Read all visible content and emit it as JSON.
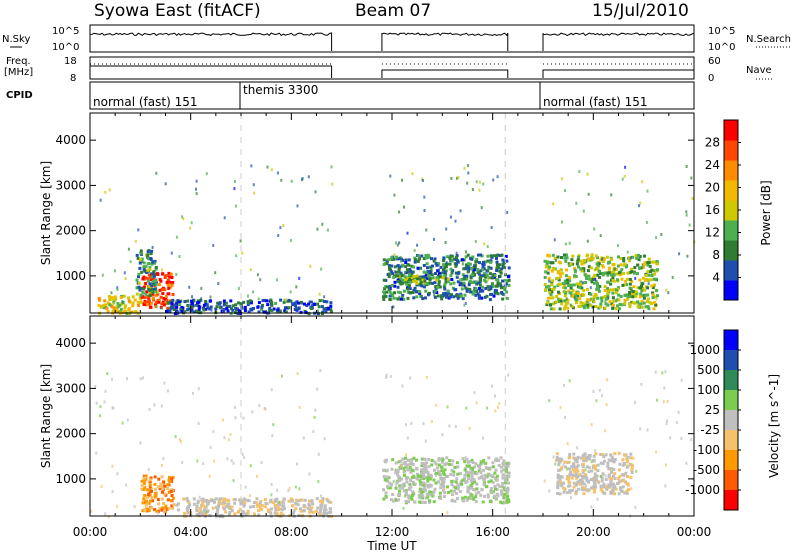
{
  "header": {
    "station": "Syowa East (fitACF)",
    "beam": "Beam 07",
    "date": "15/Jul/2010"
  },
  "panels": {
    "noise": {
      "left_label": "N.Sky",
      "right_label": "N.Search",
      "left_ticks": [
        "10^5",
        "10^0"
      ],
      "right_ticks": [
        "10^5",
        "10^0"
      ]
    },
    "freq": {
      "left_label_1": "Freq.",
      "left_label_2": "[MHz]",
      "right_label": "Nave",
      "left_ticks": [
        "18",
        "8"
      ],
      "right_ticks": [
        "60",
        "0"
      ]
    },
    "cpid": {
      "label": "CPID",
      "modes": [
        "normal (fast) 151",
        "themis 3300",
        "normal (fast) 151"
      ]
    }
  },
  "colors": {
    "power": [
      "#0000ff",
      "#1e4fb0",
      "#2e7d32",
      "#4caf50",
      "#cfc800",
      "#f5b800",
      "#ff8c00",
      "#ff4500",
      "#ff0000"
    ],
    "velocity": [
      "#ff0000",
      "#ff5a00",
      "#ff9900",
      "#f5c26b",
      "#bfbfbf",
      "#7ccc4f",
      "#2e8b57",
      "#1e4fb0",
      "#0000ff"
    ]
  },
  "chart_data": [
    {
      "type": "heatmap",
      "title": "Power",
      "xlabel": "Time UT",
      "ylabel": "Slant Range [km]",
      "x_ticks": [
        "00:00",
        "04:00",
        "08:00",
        "12:00",
        "16:00",
        "20:00",
        "00:00"
      ],
      "x_range_hours": [
        0,
        24
      ],
      "y_ticks": [
        1000,
        2000,
        3000,
        4000
      ],
      "ylim": [
        180,
        4600
      ],
      "colorbar_label": "Power [dB]",
      "colorbar_ticks": [
        4,
        8,
        12,
        16,
        20,
        24,
        28
      ],
      "colorbar_range": [
        0,
        32
      ],
      "data_gaps_hours": [
        [
          9.6,
          11.6
        ],
        [
          16.6,
          18.0
        ]
      ],
      "mode_boundaries_hours": [
        6.0,
        16.5
      ],
      "echo_regions": [
        {
          "t": [
            0.3,
            2.0
          ],
          "r": [
            200,
            600
          ],
          "value": 18
        },
        {
          "t": [
            2.0,
            3.3
          ],
          "r": [
            300,
            1100
          ],
          "value": 28
        },
        {
          "t": [
            1.8,
            2.6
          ],
          "r": [
            600,
            1600
          ],
          "value": 10
        },
        {
          "t": [
            3.0,
            9.6
          ],
          "r": [
            200,
            500
          ],
          "value": 6
        },
        {
          "t": [
            11.6,
            16.6
          ],
          "r": [
            500,
            1500
          ],
          "value": 8
        },
        {
          "t": [
            12.0,
            14.2
          ],
          "r": [
            850,
            1050
          ],
          "value": 12
        },
        {
          "t": [
            18.0,
            22.5
          ],
          "r": [
            300,
            1500
          ],
          "value": 14
        }
      ]
    },
    {
      "type": "heatmap",
      "title": "Velocity",
      "xlabel": "Time UT",
      "ylabel": "Slant Range [km]",
      "x_ticks": [
        "00:00",
        "04:00",
        "08:00",
        "12:00",
        "16:00",
        "20:00",
        "00:00"
      ],
      "x_range_hours": [
        0,
        24
      ],
      "y_ticks": [
        1000,
        2000,
        3000,
        4000
      ],
      "ylim": [
        180,
        4600
      ],
      "colorbar_label": "Velocity [m s^-1]",
      "colorbar_ticks": [
        "1000",
        "500",
        "100",
        "25",
        "-25",
        "-100",
        "-500",
        "-1000"
      ],
      "data_gaps_hours": [
        [
          9.6,
          11.6
        ],
        [
          16.6,
          18.0
        ]
      ],
      "echo_regions": [
        {
          "t": [
            2.0,
            3.3
          ],
          "r": [
            300,
            1100
          ],
          "value": -500
        },
        {
          "t": [
            3.3,
            9.6
          ],
          "r": [
            200,
            600
          ],
          "value": -100
        },
        {
          "t": [
            11.6,
            16.6
          ],
          "r": [
            500,
            1500
          ],
          "value": 100
        },
        {
          "t": [
            18.5,
            21.5
          ],
          "r": [
            700,
            1600
          ],
          "value": -100
        }
      ]
    }
  ]
}
